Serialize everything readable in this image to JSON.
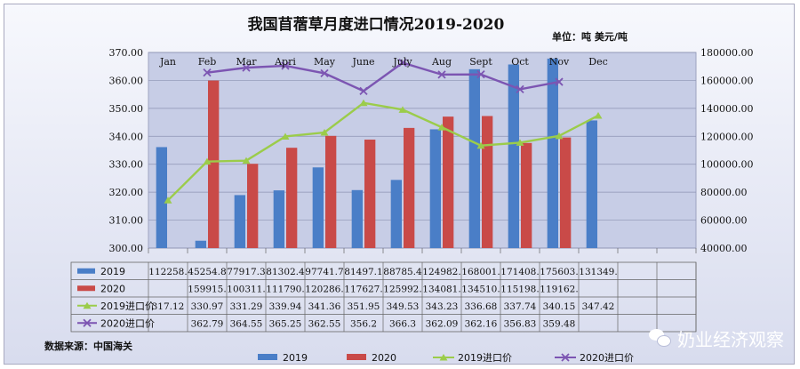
{
  "chart_data": {
    "type": "bar",
    "title": "我国苜蓿草月度进口情况2019-2020",
    "unit": "单位：吨  美元/吨",
    "source": "数据来源：中国海关",
    "categories": [
      "Jan",
      "Feb",
      "Mar",
      "Apri",
      "May",
      "June",
      "July",
      "Aug",
      "Sept",
      "Oct",
      "Nov",
      "Dec"
    ],
    "left_axis": {
      "min": 300,
      "max": 370,
      "step": 10,
      "decimals": 2
    },
    "right_axis": {
      "min": 40000,
      "max": 180000,
      "step": 20000,
      "decimals": 2
    },
    "series": [
      {
        "name": "2019",
        "kind": "bar",
        "axis": "right",
        "color": "#4a7ec7",
        "values": [
          112258,
          45254.8,
          77917.3,
          81302.4,
          97741.7,
          81497.1,
          88785.4,
          124982,
          168001,
          171408,
          175603,
          131349
        ]
      },
      {
        "name": "2020",
        "kind": "bar",
        "axis": "right",
        "color": "#c94a48",
        "values": [
          null,
          159915,
          100311,
          111790,
          120286,
          117627,
          125992,
          134081,
          134510,
          115198,
          119162,
          null
        ]
      },
      {
        "name": "2019进口价",
        "kind": "line",
        "axis": "left",
        "color": "#9bcc4a",
        "marker": "triangle",
        "values": [
          317.12,
          330.97,
          331.29,
          339.94,
          341.36,
          351.95,
          349.53,
          343.23,
          336.68,
          337.74,
          340.15,
          347.42
        ]
      },
      {
        "name": "2020进口价",
        "kind": "line",
        "axis": "left",
        "color": "#7c55b2",
        "marker": "x",
        "values": [
          null,
          362.79,
          364.55,
          365.25,
          362.55,
          356.2,
          366.3,
          362.09,
          362.16,
          356.83,
          359.48,
          null
        ]
      }
    ],
    "table_rows": [
      {
        "label": "2019",
        "cells": [
          "112258.",
          "45254.8",
          "77917.3",
          "81302.4",
          "97741.7",
          "81497.1",
          "88785.4",
          "124982.",
          "168001.",
          "171408.",
          "175603.",
          "131349."
        ]
      },
      {
        "label": "2020",
        "cells": [
          "",
          "159915.",
          "100311.",
          "111790.",
          "120286.",
          "117627.",
          "125992.",
          "134081.",
          "134510.",
          "115198.",
          "119162.",
          ""
        ]
      },
      {
        "label": "2019进口价",
        "cells": [
          "317.12",
          "330.97",
          "331.29",
          "339.94",
          "341.36",
          "351.95",
          "349.53",
          "343.23",
          "336.68",
          "337.74",
          "340.15",
          "347.42"
        ]
      },
      {
        "label": "2020进口价",
        "cells": [
          "",
          "362.79",
          "364.55",
          "365.25",
          "362.55",
          "356.2",
          "366.3",
          "362.09",
          "362.16",
          "356.83",
          "359.48",
          ""
        ]
      }
    ]
  },
  "brand": {
    "text": "奶业经济观察"
  }
}
